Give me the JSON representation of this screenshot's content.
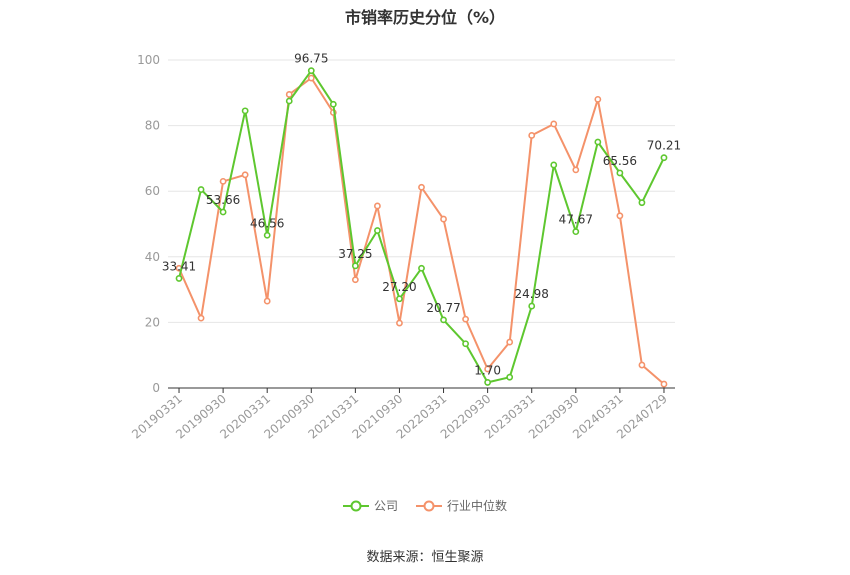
{
  "title": "市销率历史分位（%）",
  "source": "数据来源：恒生聚源",
  "colors": {
    "company": "#5ec72f",
    "industry": "#f4926a",
    "grid": "#e6e6e6",
    "axis": "#333333"
  },
  "chart_data": {
    "type": "line",
    "xlabel": "",
    "ylabel": "",
    "ylim": [
      0,
      100
    ],
    "yticks": [
      0,
      20,
      40,
      60,
      80,
      100
    ],
    "x": [
      "20190331",
      "20190630",
      "20190930",
      "20191231",
      "20200331",
      "20200630",
      "20200930",
      "20201231",
      "20210331",
      "20210630",
      "20210930",
      "20211231",
      "20220331",
      "20220630",
      "20220930",
      "20221231",
      "20230331",
      "20230630",
      "20230930",
      "20231231",
      "20240331",
      "20240630",
      "20240729"
    ],
    "x_tick_labels": [
      "20190331",
      "20190930",
      "20200331",
      "20200930",
      "20210331",
      "20210930",
      "20220331",
      "20220930",
      "20230331",
      "20230930",
      "20240331",
      "20240729"
    ],
    "legend_position": "bottom",
    "grid": true,
    "series": [
      {
        "name": "公司",
        "color": "#5ec72f",
        "values": [
          33.41,
          60.5,
          53.66,
          84.5,
          46.56,
          87.5,
          96.75,
          86.5,
          37.25,
          48.0,
          27.2,
          36.5,
          20.77,
          13.5,
          1.7,
          3.3,
          24.98,
          68.0,
          47.67,
          75.0,
          65.56,
          56.5,
          70.21
        ]
      },
      {
        "name": "行业中位数",
        "color": "#f4926a",
        "values": [
          36.5,
          21.3,
          63.0,
          65.0,
          26.5,
          89.5,
          94.5,
          84.0,
          33.0,
          55.5,
          19.8,
          61.2,
          51.5,
          21.0,
          5.8,
          14.0,
          77.0,
          80.5,
          66.5,
          88.0,
          52.5,
          7.0,
          1.2
        ]
      }
    ],
    "data_labels": [
      {
        "index": 0,
        "text": "33.41"
      },
      {
        "index": 2,
        "text": "53.66"
      },
      {
        "index": 4,
        "text": "46.56"
      },
      {
        "index": 6,
        "text": "96.75"
      },
      {
        "index": 8,
        "text": "37.25"
      },
      {
        "index": 10,
        "text": "27.20"
      },
      {
        "index": 12,
        "text": "20.77"
      },
      {
        "index": 14,
        "text": "1.70"
      },
      {
        "index": 16,
        "text": "24.98"
      },
      {
        "index": 18,
        "text": "47.67"
      },
      {
        "index": 20,
        "text": "65.56"
      },
      {
        "index": 22,
        "text": "70.21"
      }
    ]
  }
}
